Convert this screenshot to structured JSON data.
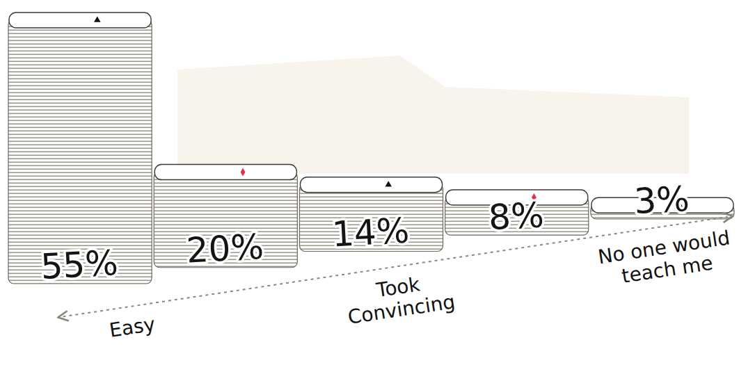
{
  "chart_data": {
    "type": "bar",
    "categories": [
      "Easy",
      null,
      "Took Convincing",
      null,
      "No one would teach me"
    ],
    "values": [
      55,
      20,
      14,
      8,
      3
    ],
    "value_labels": [
      "55%",
      "20%",
      "14%",
      "8%",
      "3%"
    ],
    "data_labels": true,
    "tick_labels": "x",
    "color": "#9b978b",
    "ylim": [
      0,
      55
    ]
  }
}
